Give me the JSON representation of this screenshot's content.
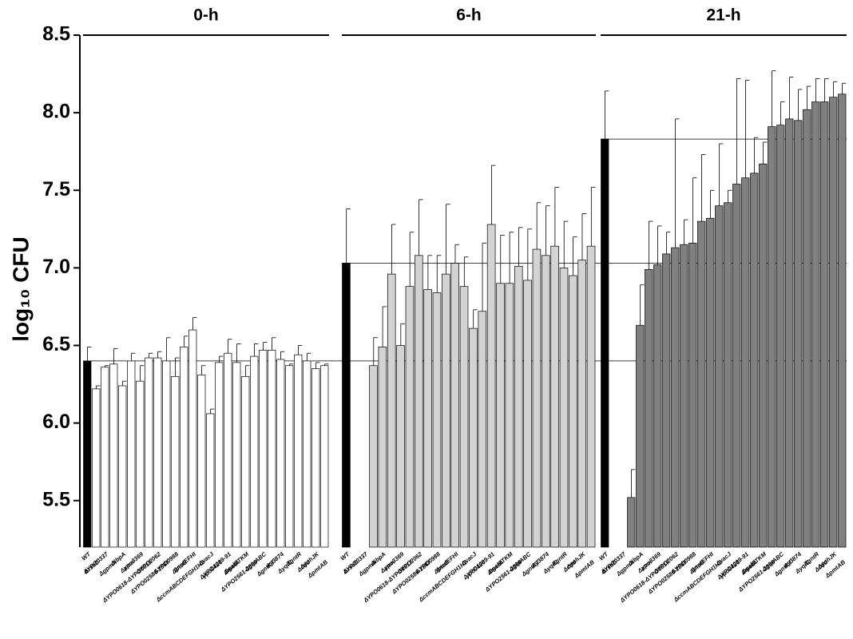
{
  "chart_data": [
    {
      "type": "bar",
      "title": "0-h",
      "ylabel": "log₁₀ CFU",
      "ylim": [
        5.2,
        8.5
      ],
      "yticks": [
        {
          "value": 5.5,
          "label": "5.5"
        },
        {
          "value": 6,
          "label": "6.0"
        },
        6.5,
        {
          "value": 7,
          "label": "7.0"
        },
        7.5,
        {
          "value": 8,
          "label": "8.0"
        },
        8.5
      ],
      "color": "#ffffff",
      "wt_color": "#000000",
      "categories": [
        "WT",
        "ΔrseC",
        "ΔYPO0337",
        "ΔgpmA",
        "ΔibpA",
        "Δamn",
        "ypo3369",
        "ΔYPO0618-ΔYPO0617",
        "ΔYPO2062",
        "ΔYPO02586-2587",
        "ΔYPO0988",
        "ΔptsG",
        "ΔnrdEFHI",
        "ΔccmABCDEFGH1H2",
        "ΔvacJ",
        "ypo0426",
        "ΔYPO1089-91",
        "ΔmetA",
        "ΔgalETKM",
        "ΔYPO2561-2560",
        "ΔglpABC",
        "ΔgntKT",
        "Δy3874",
        "ΔyqiC",
        "ΔgntR",
        "Δcdd",
        "ΔyohJK",
        "ΔpmtAB"
      ],
      "values": [
        6.4,
        6.22,
        6.36,
        6.38,
        6.24,
        6.4,
        6.27,
        6.42,
        6.42,
        6.4,
        6.3,
        6.49,
        6.6,
        6.31,
        6.06,
        6.39,
        6.45,
        6.39,
        6.3,
        6.43,
        6.47,
        6.47,
        6.41,
        6.37,
        6.44,
        6.4,
        6.35,
        6.37
      ],
      "errors": [
        0.09,
        0.02,
        0.01,
        0.1,
        0.03,
        0.05,
        0.1,
        0.03,
        0.04,
        0.15,
        0.12,
        0.07,
        0.08,
        0.06,
        0.03,
        0.04,
        0.09,
        0.12,
        0.07,
        0.08,
        0.05,
        0.08,
        0.05,
        0.01,
        0.06,
        0.05,
        0.04,
        0.01
      ]
    },
    {
      "type": "bar",
      "title": "6-h",
      "ylim": [
        5.2,
        8.5
      ],
      "color": "#d3d3d3",
      "wt_color": "#000000",
      "categories": [
        "WT",
        "ΔrseC",
        "ΔYPO0337",
        "ΔgpmA",
        "ΔibpA",
        "Δamn",
        "ypo3369",
        "ΔYPO0618-ΔYPO0617",
        "ΔYPO2062",
        "ΔYPO02586-2587",
        "ΔYPO0988",
        "ΔptsG",
        "ΔnrdEFHI",
        "ΔccmABCDEFGH1H2",
        "ΔvacJ",
        "ypo0426",
        "ΔYPO1089-91",
        "ΔmetA",
        "ΔgalETKM",
        "ΔYPO2561-2560",
        "ΔglpABC",
        "ΔgntKT",
        "Δy3874",
        "ΔyqiC",
        "ΔgntR",
        "Δcdd",
        "ΔyohJK",
        "ΔpmtAB"
      ],
      "values": [
        7.03,
        null,
        null,
        6.37,
        6.49,
        6.96,
        6.5,
        6.88,
        7.08,
        6.86,
        6.84,
        6.96,
        7.03,
        6.88,
        6.61,
        6.72,
        7.28,
        6.9,
        6.9,
        7.01,
        6.92,
        7.12,
        7.08,
        7.14,
        7.0,
        6.95,
        7.05,
        7.14
      ],
      "errors": [
        0.35,
        null,
        null,
        0.18,
        0.26,
        0.32,
        0.14,
        0.35,
        0.36,
        0.22,
        0.24,
        0.45,
        0.12,
        0.19,
        0.12,
        0.44,
        0.38,
        0.31,
        0.33,
        0.25,
        0.33,
        0.3,
        0.32,
        0.38,
        0.3,
        0.25,
        0.3,
        0.38
      ]
    },
    {
      "type": "bar",
      "title": "21-h",
      "ylim": [
        5.2,
        8.5
      ],
      "color": "#808080",
      "wt_color": "#000000",
      "categories": [
        "WT",
        "ΔrseC",
        "ΔYPO0337",
        "ΔgpmA",
        "ΔibpA",
        "Δamn",
        "ypo3369",
        "ΔYPO0618-ΔYPO0617",
        "ΔYPO2062",
        "ΔYPO02586-2587",
        "ΔYPO0988",
        "ΔptsG",
        "ΔnrdEFHI",
        "ΔccmABCDEFGH1H2",
        "ΔvacJ",
        "ypo0426",
        "ΔYPO1089-91",
        "ΔmetA",
        "ΔgalETKM",
        "ΔYPO2561-2560",
        "ΔglpABC",
        "ΔgntKT",
        "Δy3874",
        "ΔyqiC",
        "ΔgntR",
        "Δcdd",
        "ΔyohJK",
        "ΔpmtAB"
      ],
      "values": [
        7.83,
        null,
        null,
        5.52,
        6.63,
        6.99,
        7.02,
        7.09,
        7.13,
        7.15,
        7.16,
        7.3,
        7.32,
        7.4,
        7.42,
        7.54,
        7.58,
        7.61,
        7.67,
        7.91,
        7.92,
        7.96,
        7.95,
        8.02,
        8.07,
        8.07,
        8.1,
        8.12
      ],
      "errors": [
        0.31,
        null,
        null,
        0.18,
        0.26,
        0.31,
        0.25,
        0.14,
        0.83,
        0.16,
        0.42,
        0.43,
        0.18,
        0.4,
        0.08,
        0.68,
        0.63,
        0.23,
        0.14,
        0.36,
        0.15,
        0.27,
        0.2,
        0.15,
        0.15,
        0.15,
        0.1,
        0.07
      ]
    }
  ]
}
